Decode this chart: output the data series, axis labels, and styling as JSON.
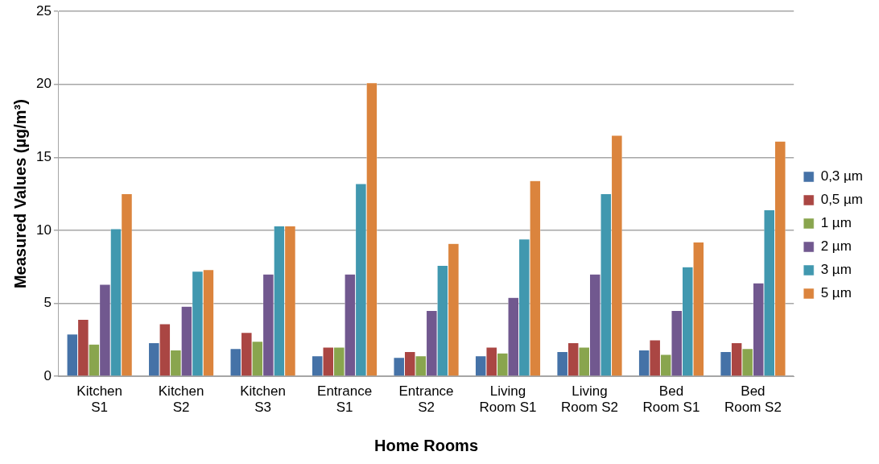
{
  "chart_data": {
    "type": "bar",
    "xlabel": "Home Rooms",
    "ylabel": "Measured Values (µg/m³)",
    "categories": [
      "Kitchen S1",
      "Kitchen S2",
      "Kitchen S3",
      "Entrance S1",
      "Entrance S2",
      "Living Room S1",
      "Living Room S2",
      "Bed Room S1",
      "Bed Room S2"
    ],
    "series": [
      {
        "name": "0,3 µm",
        "color": "#4572a7",
        "values": [
          2.9,
          2.3,
          1.9,
          1.4,
          1.3,
          1.4,
          1.7,
          1.8,
          1.7
        ]
      },
      {
        "name": "0,5 µm",
        "color": "#aa4643",
        "values": [
          3.9,
          3.6,
          3.0,
          2.0,
          1.7,
          2.0,
          2.3,
          2.5,
          2.3
        ]
      },
      {
        "name": "1 µm",
        "color": "#89a54e",
        "values": [
          2.2,
          1.8,
          2.4,
          2.0,
          1.4,
          1.6,
          2.0,
          1.5,
          1.9
        ]
      },
      {
        "name": "2 µm",
        "color": "#71588f",
        "values": [
          6.3,
          4.8,
          7.0,
          7.0,
          4.5,
          5.4,
          7.0,
          4.5,
          6.4
        ]
      },
      {
        "name": "3 µm",
        "color": "#4198af",
        "values": [
          10.1,
          7.2,
          10.3,
          13.2,
          7.6,
          9.4,
          12.5,
          7.5,
          11.4
        ]
      },
      {
        "name": "5 µm",
        "color": "#db843d",
        "values": [
          12.5,
          7.3,
          10.3,
          20.1,
          9.1,
          13.4,
          16.5,
          9.2,
          16.1
        ]
      }
    ],
    "ylim": [
      0,
      25
    ],
    "yticks": [
      0,
      5,
      10,
      15,
      20,
      25
    ],
    "grid": "y",
    "legend": "right"
  }
}
